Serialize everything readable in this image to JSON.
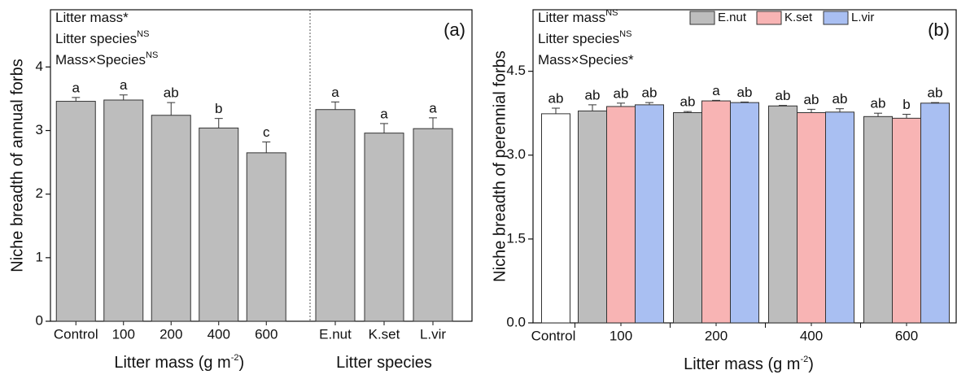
{
  "chart_data": [
    {
      "type": "bar",
      "panel_label": "(a)",
      "ylabel": "Niche breadth of annual forbs",
      "annotations": [
        {
          "text": "Litter mass*"
        },
        {
          "text": "Litter species",
          "sup": "NS"
        },
        {
          "text": "Mass×Species",
          "sup": "NS"
        }
      ],
      "categories": [
        "Control",
        "100",
        "200",
        "400",
        "600",
        "E.nut",
        "K.set",
        "L.vir"
      ],
      "values": [
        3.46,
        3.48,
        3.24,
        3.04,
        2.65,
        3.33,
        2.96,
        3.03
      ],
      "errors": [
        0.06,
        0.08,
        0.2,
        0.15,
        0.17,
        0.12,
        0.15,
        0.17
      ],
      "letters": [
        "a",
        "a",
        "ab",
        "b",
        "c",
        "a",
        "a",
        "a"
      ],
      "color": "#bdbdbd",
      "group_labels": [
        {
          "text": "Litter mass (g m",
          "sup": "-2",
          "tail": ")"
        },
        {
          "text": "Litter species"
        }
      ],
      "ylim": [
        0,
        4.9
      ],
      "yticks": [
        0,
        1,
        2,
        3,
        4
      ]
    },
    {
      "type": "grouped_bar",
      "panel_label": "(b)",
      "ylabel": "Niche breadth of perennial forbs",
      "annotations": [
        {
          "text": "Litter mass",
          "sup": "NS"
        },
        {
          "text": "Litter species",
          "sup": "NS"
        },
        {
          "text": "Mass×Species*"
        }
      ],
      "control": {
        "name": "Control",
        "value": 3.74,
        "error": 0.1,
        "letter": "ab",
        "color": "#ffffff"
      },
      "categories": [
        "100",
        "200",
        "400",
        "600"
      ],
      "series": [
        {
          "name": "E.nut",
          "color": "#bdbdbd",
          "values": [
            3.79,
            3.76,
            3.88,
            3.69
          ],
          "errors": [
            0.11,
            0.02,
            0.01,
            0.06
          ],
          "letters": [
            "ab",
            "ab",
            "ab",
            "ab"
          ]
        },
        {
          "name": "K.set",
          "color": "#f8b4b4",
          "values": [
            3.87,
            3.97,
            3.76,
            3.66
          ],
          "errors": [
            0.06,
            0.01,
            0.06,
            0.07
          ],
          "letters": [
            "ab",
            "a",
            "ab",
            "b"
          ]
        },
        {
          "name": "L.vir",
          "color": "#a9bff2",
          "values": [
            3.9,
            3.94,
            3.77,
            3.93
          ],
          "errors": [
            0.04,
            0.01,
            0.06,
            0.01
          ],
          "letters": [
            "ab",
            "ab",
            "ab",
            "ab"
          ]
        }
      ],
      "xlabel": {
        "text": "Litter mass (g m",
        "sup": "-2",
        "tail": ")"
      },
      "legend": "top",
      "ylim": [
        0,
        5.6
      ],
      "yticks": [
        {
          "value": 0,
          "label": "0.0"
        },
        1.5,
        {
          "value": 3,
          "label": "3.0"
        },
        4.5
      ]
    }
  ]
}
